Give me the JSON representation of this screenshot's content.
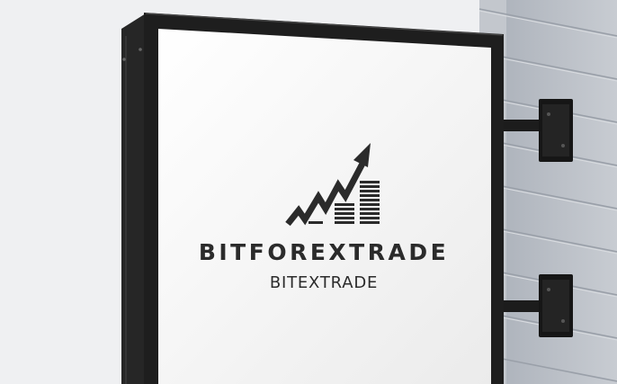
{
  "sign": {
    "brand_name": "BITFOREXTRADE",
    "tagline": "BITEXTRADE",
    "logo_icon": "rising-arrow-chart-icon"
  },
  "colors": {
    "wall": "#b9bec6",
    "frame": "#1e1e1e",
    "panel": "#f4f4f4",
    "ink": "#2b2b2b"
  }
}
